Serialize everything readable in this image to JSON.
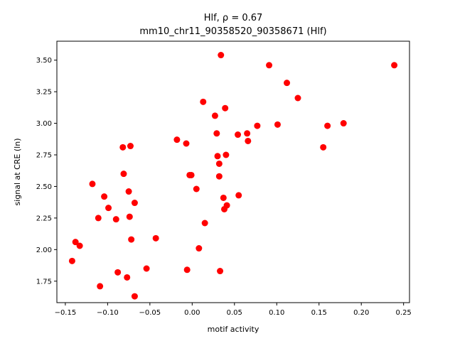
{
  "chart_data": {
    "type": "scatter",
    "title_line1": "Hlf, ρ = 0.67",
    "title_line2": "mm10_chr11_90358520_90358671 (Hlf)",
    "xlabel": "motif activity",
    "ylabel": "signal at CRE (ln)",
    "xlim": [
      -0.16,
      0.257
    ],
    "ylim": [
      1.58,
      3.65
    ],
    "xticks": [
      -0.15,
      -0.1,
      -0.05,
      0.0,
      0.05,
      0.1,
      0.15,
      0.2,
      0.25
    ],
    "xtick_labels": [
      "−0.15",
      "−0.10",
      "−0.05",
      "0.00",
      "0.05",
      "0.10",
      "0.15",
      "0.20",
      "0.25"
    ],
    "yticks": [
      1.75,
      2.0,
      2.25,
      2.5,
      2.75,
      3.0,
      3.25,
      3.5
    ],
    "ytick_labels": [
      "1.75",
      "2.00",
      "2.25",
      "2.50",
      "2.75",
      "3.00",
      "3.25",
      "3.50"
    ],
    "grid": false,
    "marker_color": "#ff0000",
    "points": [
      {
        "x": -0.142,
        "y": 1.91
      },
      {
        "x": -0.138,
        "y": 2.06
      },
      {
        "x": -0.133,
        "y": 2.03
      },
      {
        "x": -0.118,
        "y": 2.52
      },
      {
        "x": -0.111,
        "y": 2.25
      },
      {
        "x": -0.109,
        "y": 1.71
      },
      {
        "x": -0.104,
        "y": 2.42
      },
      {
        "x": -0.099,
        "y": 2.33
      },
      {
        "x": -0.09,
        "y": 2.24
      },
      {
        "x": -0.088,
        "y": 1.82
      },
      {
        "x": -0.082,
        "y": 2.81
      },
      {
        "x": -0.081,
        "y": 2.6
      },
      {
        "x": -0.077,
        "y": 1.78
      },
      {
        "x": -0.075,
        "y": 2.46
      },
      {
        "x": -0.074,
        "y": 2.26
      },
      {
        "x": -0.073,
        "y": 2.82
      },
      {
        "x": -0.072,
        "y": 2.08
      },
      {
        "x": -0.068,
        "y": 2.37
      },
      {
        "x": -0.068,
        "y": 1.63
      },
      {
        "x": -0.043,
        "y": 2.09
      },
      {
        "x": -0.054,
        "y": 1.85
      },
      {
        "x": -0.018,
        "y": 2.87
      },
      {
        "x": -0.007,
        "y": 2.84
      },
      {
        "x": -0.006,
        "y": 1.84
      },
      {
        "x": -0.003,
        "y": 2.59
      },
      {
        "x": -0.001,
        "y": 2.59
      },
      {
        "x": 0.005,
        "y": 2.48
      },
      {
        "x": 0.008,
        "y": 2.01
      },
      {
        "x": 0.013,
        "y": 3.17
      },
      {
        "x": 0.015,
        "y": 2.21
      },
      {
        "x": 0.027,
        "y": 3.06
      },
      {
        "x": 0.029,
        "y": 2.92
      },
      {
        "x": 0.03,
        "y": 2.74
      },
      {
        "x": 0.032,
        "y": 2.68
      },
      {
        "x": 0.032,
        "y": 2.58
      },
      {
        "x": 0.033,
        "y": 1.83
      },
      {
        "x": 0.034,
        "y": 3.54
      },
      {
        "x": 0.037,
        "y": 2.41
      },
      {
        "x": 0.038,
        "y": 2.32
      },
      {
        "x": 0.039,
        "y": 3.12
      },
      {
        "x": 0.04,
        "y": 2.75
      },
      {
        "x": 0.041,
        "y": 2.35
      },
      {
        "x": 0.054,
        "y": 2.91
      },
      {
        "x": 0.055,
        "y": 2.43
      },
      {
        "x": 0.065,
        "y": 2.92
      },
      {
        "x": 0.066,
        "y": 2.86
      },
      {
        "x": 0.077,
        "y": 2.98
      },
      {
        "x": 0.091,
        "y": 3.46
      },
      {
        "x": 0.101,
        "y": 2.99
      },
      {
        "x": 0.112,
        "y": 3.32
      },
      {
        "x": 0.125,
        "y": 3.2
      },
      {
        "x": 0.155,
        "y": 2.81
      },
      {
        "x": 0.16,
        "y": 2.98
      },
      {
        "x": 0.179,
        "y": 3.0
      },
      {
        "x": 0.239,
        "y": 3.46
      }
    ]
  }
}
